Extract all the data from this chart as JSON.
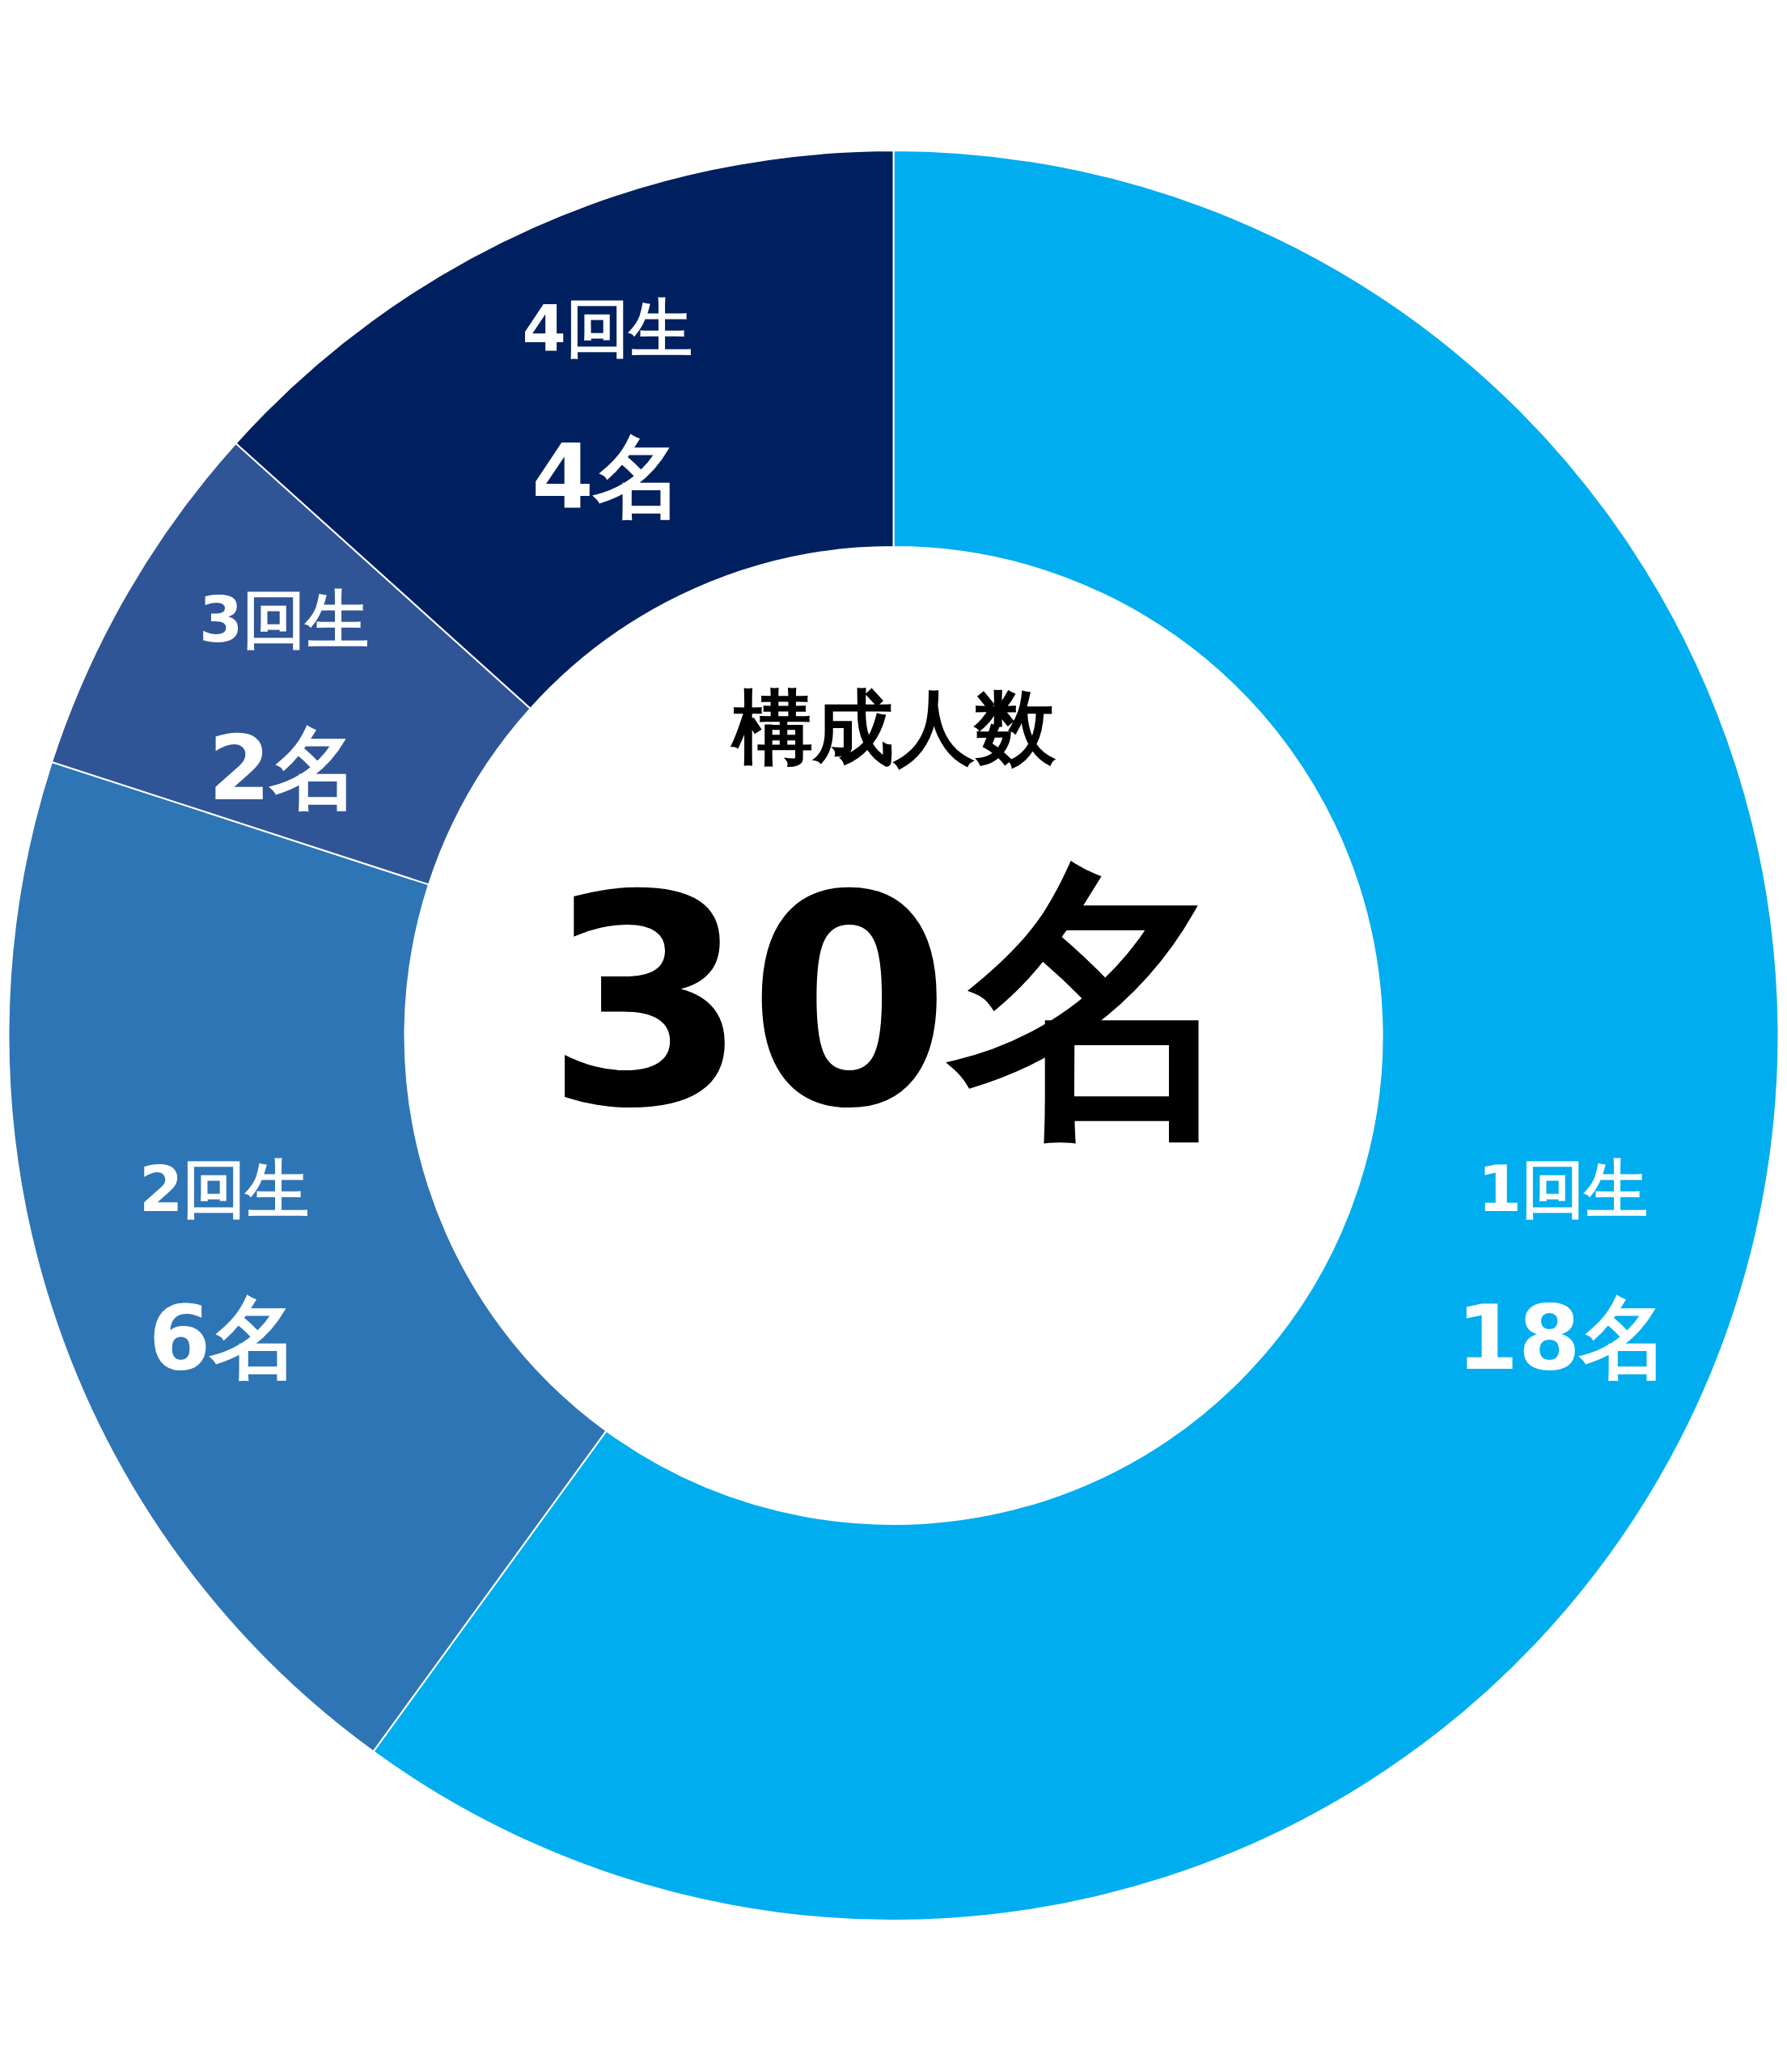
{
  "chart_data": {
    "type": "donut",
    "categories": [
      "1回生",
      "2回生",
      "3回生",
      "4回生"
    ],
    "values": [
      18,
      6,
      2,
      4
    ],
    "colors": [
      "#00aeef",
      "#2e75b6",
      "#2f5597",
      "#002060"
    ],
    "value_labels": [
      "18名",
      "6名",
      "2名",
      "4名"
    ],
    "annotations": [
      "構成人数",
      "30名"
    ]
  }
}
